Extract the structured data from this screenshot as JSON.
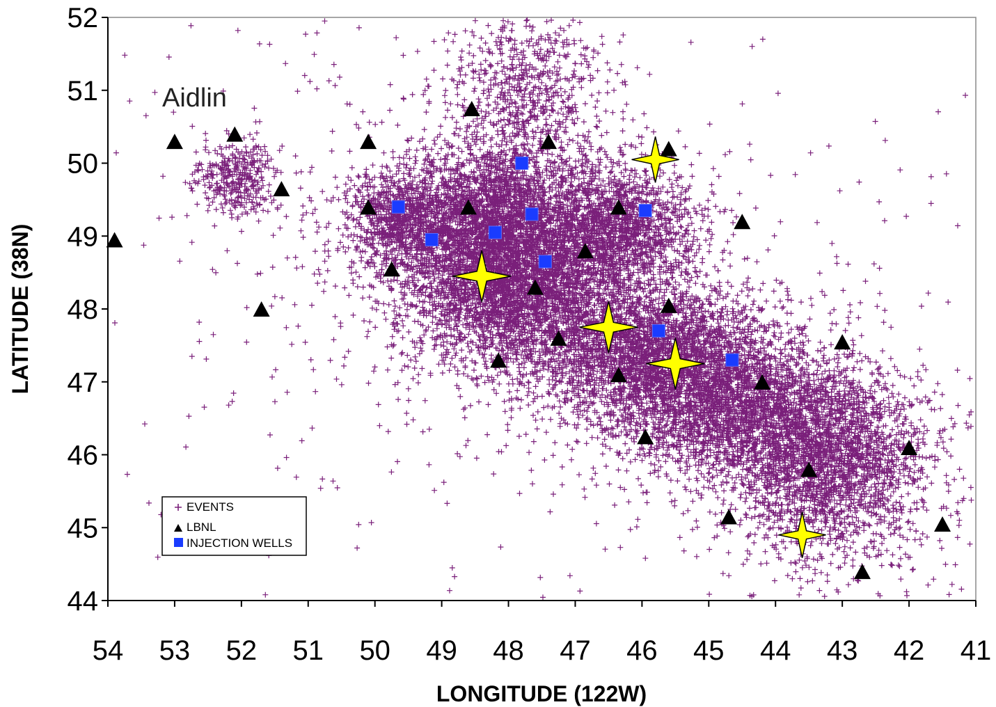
{
  "chart_data": {
    "type": "scatter",
    "annotation": "Aidlin",
    "xlabel": "LONGITUDE (122W)",
    "ylabel": "LATITUDE (38N)",
    "xlim": [
      54,
      41
    ],
    "ylim": [
      44,
      52
    ],
    "x_reversed": true,
    "x_ticks": [
      "54",
      "53",
      "52",
      "51",
      "50",
      "49",
      "48",
      "47",
      "46",
      "45",
      "44",
      "43",
      "42",
      "41"
    ],
    "y_ticks": [
      "44",
      "45",
      "46",
      "47",
      "48",
      "49",
      "50",
      "51",
      "52"
    ],
    "grid": false,
    "legend": {
      "placement": "bottom-left",
      "entries": [
        {
          "label": "EVENTS",
          "marker": "plus",
          "color": "#7a1f7a"
        },
        {
          "label": "LBNL",
          "marker": "triangle",
          "color": "#000000"
        },
        {
          "label": "INJECTION WELLS",
          "marker": "square",
          "color": "#1a3cff"
        }
      ]
    },
    "colors": {
      "events": "#7a1f7a",
      "lbnl": "#000000",
      "wells": "#1a3cff",
      "stars": "#ffff00"
    },
    "events_density_clusters": [
      {
        "x": 48.2,
        "y": 49.2,
        "sx": 0.65,
        "sy": 0.55,
        "weight": 3
      },
      {
        "x": 47.9,
        "y": 48.2,
        "sx": 0.8,
        "sy": 0.5,
        "weight": 3
      },
      {
        "x": 46.4,
        "y": 49.1,
        "sx": 0.6,
        "sy": 0.45,
        "weight": 2
      },
      {
        "x": 45.8,
        "y": 47.4,
        "sx": 0.9,
        "sy": 0.45,
        "weight": 3
      },
      {
        "x": 44.6,
        "y": 46.6,
        "sx": 0.9,
        "sy": 0.45,
        "weight": 2.5
      },
      {
        "x": 43.2,
        "y": 45.9,
        "sx": 0.7,
        "sy": 0.6,
        "weight": 2.5
      },
      {
        "x": 49.6,
        "y": 49.2,
        "sx": 0.4,
        "sy": 0.35,
        "weight": 1
      },
      {
        "x": 52.1,
        "y": 49.8,
        "sx": 0.3,
        "sy": 0.25,
        "weight": 0.4
      },
      {
        "x": 47.7,
        "y": 51.0,
        "sx": 0.6,
        "sy": 0.6,
        "weight": 0.8
      }
    ],
    "lbnl_stations": [
      {
        "x": 53.9,
        "y": 48.95
      },
      {
        "x": 53.0,
        "y": 50.3
      },
      {
        "x": 52.1,
        "y": 50.4
      },
      {
        "x": 51.4,
        "y": 49.65
      },
      {
        "x": 51.7,
        "y": 48.0
      },
      {
        "x": 50.1,
        "y": 50.3
      },
      {
        "x": 50.1,
        "y": 49.4
      },
      {
        "x": 49.75,
        "y": 48.55
      },
      {
        "x": 48.55,
        "y": 50.75
      },
      {
        "x": 48.6,
        "y": 49.4
      },
      {
        "x": 48.15,
        "y": 47.3
      },
      {
        "x": 47.6,
        "y": 48.3
      },
      {
        "x": 47.4,
        "y": 50.3
      },
      {
        "x": 47.25,
        "y": 47.6
      },
      {
        "x": 46.85,
        "y": 48.8
      },
      {
        "x": 46.35,
        "y": 49.4
      },
      {
        "x": 46.35,
        "y": 47.1
      },
      {
        "x": 45.95,
        "y": 46.25
      },
      {
        "x": 45.6,
        "y": 50.2
      },
      {
        "x": 45.6,
        "y": 48.05
      },
      {
        "x": 44.5,
        "y": 49.2
      },
      {
        "x": 44.7,
        "y": 45.15
      },
      {
        "x": 44.2,
        "y": 47.0
      },
      {
        "x": 43.5,
        "y": 45.8
      },
      {
        "x": 43.0,
        "y": 47.55
      },
      {
        "x": 42.7,
        "y": 44.4
      },
      {
        "x": 42.0,
        "y": 46.1
      },
      {
        "x": 41.5,
        "y": 45.05
      }
    ],
    "injection_wells": [
      {
        "x": 49.65,
        "y": 49.4
      },
      {
        "x": 49.15,
        "y": 48.95
      },
      {
        "x": 48.2,
        "y": 49.05
      },
      {
        "x": 47.8,
        "y": 50.0
      },
      {
        "x": 47.65,
        "y": 49.3
      },
      {
        "x": 47.45,
        "y": 48.65
      },
      {
        "x": 45.95,
        "y": 49.35
      },
      {
        "x": 45.75,
        "y": 47.7
      },
      {
        "x": 44.65,
        "y": 47.3
      }
    ],
    "stars": [
      {
        "x": 45.8,
        "y": 50.05,
        "size": "small"
      },
      {
        "x": 48.4,
        "y": 48.45,
        "size": "large"
      },
      {
        "x": 46.5,
        "y": 47.75,
        "size": "large"
      },
      {
        "x": 45.5,
        "y": 47.25,
        "size": "large"
      },
      {
        "x": 43.6,
        "y": 44.9,
        "size": "small"
      }
    ]
  }
}
